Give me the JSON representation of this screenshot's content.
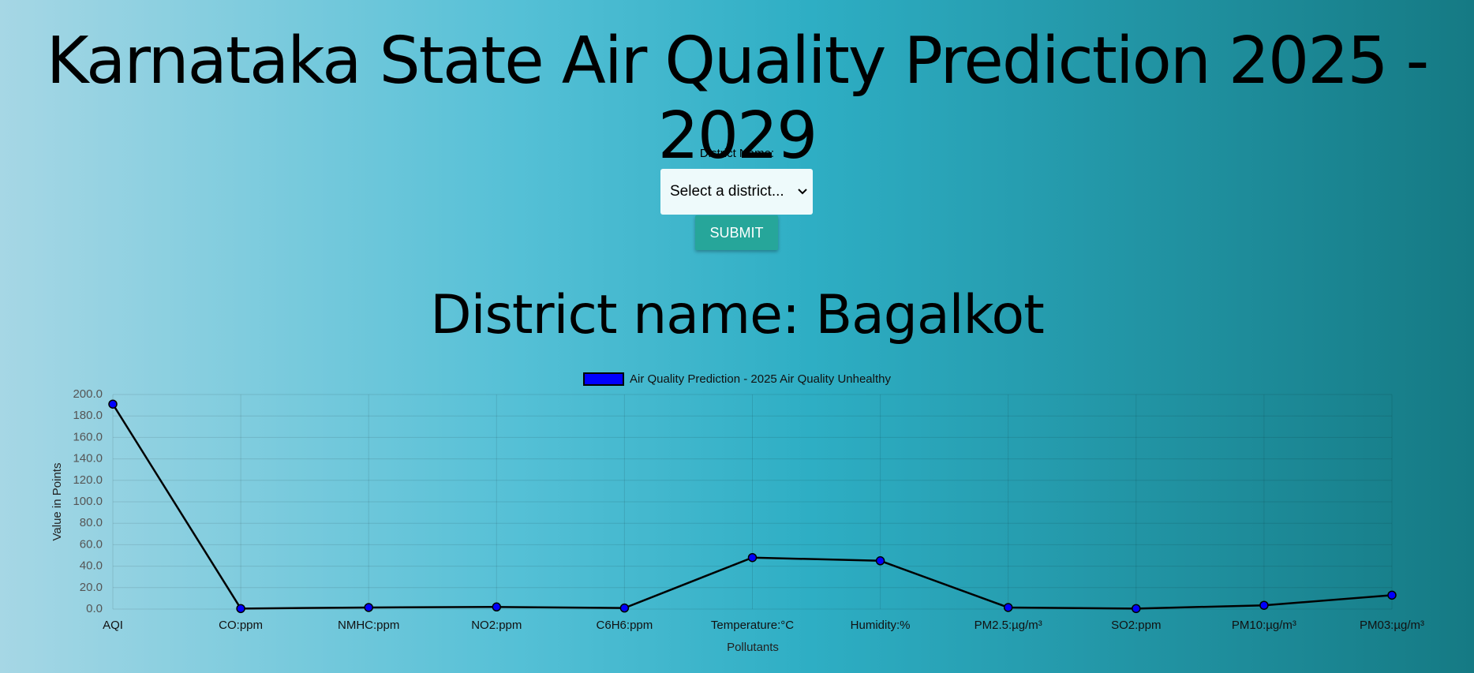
{
  "header": {
    "title": "Karnataka State Air Quality Prediction 2025 - 2029"
  },
  "form": {
    "label": "District Name:",
    "placeholder": "Select a district...",
    "button": "SUBMIT"
  },
  "result": {
    "heading": "District name: Bagalkot"
  },
  "chart_data": {
    "type": "line",
    "categories": [
      "AQI",
      "CO:ppm",
      "NMHC:ppm",
      "NO2:ppm",
      "C6H6:ppm",
      "Temperature:°C",
      "Humidity:%",
      "PM2.5:µg/m³",
      "SO2:ppm",
      "PM10:µg/m³",
      "PM03:µg/m³"
    ],
    "series": [
      {
        "name": "Air Quality Prediction - 2025 Air Quality Unhealthy",
        "color": "#0000ff",
        "values": [
          191,
          0.5,
          1.5,
          2,
          1,
          48,
          45,
          1.5,
          0.5,
          3.5,
          13
        ]
      }
    ],
    "ylim": [
      0,
      200
    ],
    "yticks": [
      {
        "value": 0,
        "label": "0.0"
      },
      {
        "value": 20,
        "label": "20.0"
      },
      {
        "value": 40,
        "label": "40.0"
      },
      {
        "value": 60,
        "label": "60.0"
      },
      {
        "value": 80,
        "label": "80.0"
      },
      {
        "value": 100,
        "label": "100.0"
      },
      {
        "value": 120,
        "label": "120.0"
      },
      {
        "value": 140,
        "label": "140.0"
      },
      {
        "value": 160,
        "label": "160.0"
      },
      {
        "value": 180,
        "label": "180.0"
      },
      {
        "value": 200,
        "label": "200.0"
      }
    ],
    "ylabel": "Value in Points",
    "xlabel": "Pollutants",
    "grid": true
  }
}
